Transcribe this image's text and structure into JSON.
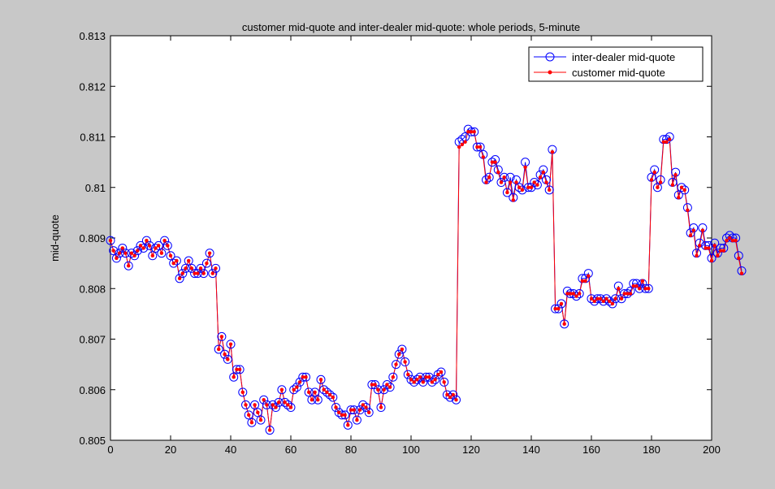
{
  "window": {
    "background": "#c8c8c8"
  },
  "chart_data": {
    "type": "line",
    "title": "customer mid-quote and inter-dealer mid-quote: whole periods, 5-minute",
    "xlabel": "",
    "ylabel": "mid-quote",
    "xlim": [
      0,
      200
    ],
    "ylim": [
      0.805,
      0.813
    ],
    "x_ticks": [
      0,
      20,
      40,
      60,
      80,
      100,
      120,
      140,
      160,
      180,
      200
    ],
    "y_ticks": [
      0.805,
      0.806,
      0.807,
      0.808,
      0.809,
      0.81,
      0.811,
      0.812,
      0.813
    ],
    "x_tick_labels": [
      "0",
      "20",
      "40",
      "60",
      "80",
      "100",
      "120",
      "140",
      "160",
      "180",
      "200"
    ],
    "y_tick_labels": [
      "0.805",
      "0.806",
      "0.807",
      "0.808",
      "0.809",
      "0.81",
      "0.811",
      "0.812",
      "0.813"
    ],
    "grid": false,
    "legend_position": "top-right",
    "series": [
      {
        "name": "inter-dealer mid-quote",
        "color": "#0000ff",
        "marker": "circle",
        "values": [
          0.80895,
          0.80875,
          0.8086,
          0.8087,
          0.8088,
          0.8087,
          0.80845,
          0.8087,
          0.80865,
          0.80875,
          0.80885,
          0.8088,
          0.80895,
          0.80885,
          0.80865,
          0.8088,
          0.80885,
          0.8087,
          0.80895,
          0.80885,
          0.80865,
          0.8085,
          0.80855,
          0.8082,
          0.8083,
          0.8084,
          0.80855,
          0.8084,
          0.8083,
          0.8083,
          0.8084,
          0.8083,
          0.8085,
          0.8087,
          0.8083,
          0.8084,
          0.8068,
          0.80705,
          0.8067,
          0.8066,
          0.8069,
          0.80625,
          0.8064,
          0.8064,
          0.80595,
          0.8057,
          0.8055,
          0.80535,
          0.8057,
          0.80555,
          0.8054,
          0.8058,
          0.8057,
          0.8052,
          0.8057,
          0.80565,
          0.80575,
          0.806,
          0.80575,
          0.8057,
          0.80565,
          0.806,
          0.80605,
          0.80615,
          0.80625,
          0.80625,
          0.80595,
          0.8058,
          0.80595,
          0.8058,
          0.8062,
          0.806,
          0.80595,
          0.8059,
          0.80585,
          0.80565,
          0.80555,
          0.8055,
          0.8055,
          0.8053,
          0.8056,
          0.8056,
          0.8054,
          0.8056,
          0.8057,
          0.80565,
          0.80555,
          0.8061,
          0.8061,
          0.806,
          0.80565,
          0.806,
          0.8061,
          0.80605,
          0.80625,
          0.8065,
          0.8067,
          0.8068,
          0.80655,
          0.8063,
          0.8062,
          0.80615,
          0.8062,
          0.80625,
          0.80615,
          0.80625,
          0.80625,
          0.80615,
          0.8062,
          0.8063,
          0.80635,
          0.80615,
          0.8059,
          0.80585,
          0.8059,
          0.8058,
          0.8109,
          0.81095,
          0.811,
          0.81115,
          0.8111,
          0.8111,
          0.8108,
          0.8108,
          0.81065,
          0.81015,
          0.8102,
          0.8105,
          0.81055,
          0.81035,
          0.8101,
          0.8102,
          0.8099,
          0.8102,
          0.8098,
          0.81015,
          0.81,
          0.80995,
          0.8105,
          0.81,
          0.81,
          0.8101,
          0.81005,
          0.81025,
          0.81035,
          0.81015,
          0.80995,
          0.81075,
          0.8076,
          0.8076,
          0.8077,
          0.8073,
          0.80795,
          0.8079,
          0.8079,
          0.80785,
          0.8079,
          0.8082,
          0.8082,
          0.8083,
          0.8078,
          0.80775,
          0.8078,
          0.8078,
          0.80775,
          0.8078,
          0.80775,
          0.8077,
          0.8078,
          0.80805,
          0.8078,
          0.8079,
          0.8079,
          0.80795,
          0.8081,
          0.8081,
          0.808,
          0.8081,
          0.808,
          0.808,
          0.8102,
          0.81035,
          0.81,
          0.81015,
          0.81095,
          0.81095,
          0.811,
          0.8101,
          0.8103,
          0.80985,
          0.81,
          0.80995,
          0.8096,
          0.8091,
          0.8092,
          0.8087,
          0.8089,
          0.8092,
          0.80885,
          0.80885,
          0.8086,
          0.8089,
          0.8087,
          0.8088,
          0.8088,
          0.809,
          0.80905,
          0.809,
          0.809,
          0.80865,
          0.80835
        ],
        "x_start": 0
      },
      {
        "name": "customer mid-quote",
        "color": "#ff0000",
        "marker": "dot",
        "values": [
          0.80895,
          0.80875,
          0.8086,
          0.8087,
          0.8088,
          0.8087,
          0.80845,
          0.8087,
          0.80865,
          0.80875,
          0.80885,
          0.8088,
          0.80895,
          0.80885,
          0.80865,
          0.8088,
          0.80885,
          0.8087,
          0.80895,
          0.80885,
          0.80865,
          0.8085,
          0.80855,
          0.8082,
          0.8083,
          0.8084,
          0.80855,
          0.8084,
          0.8083,
          0.8083,
          0.8084,
          0.8083,
          0.8085,
          0.8087,
          0.8083,
          0.8084,
          0.8068,
          0.80705,
          0.8067,
          0.8066,
          0.8069,
          0.80625,
          0.8064,
          0.8064,
          0.80595,
          0.8057,
          0.8055,
          0.80535,
          0.8057,
          0.80555,
          0.8054,
          0.8058,
          0.8057,
          0.8052,
          0.8057,
          0.80565,
          0.80575,
          0.806,
          0.80575,
          0.8057,
          0.80565,
          0.806,
          0.80605,
          0.80615,
          0.80625,
          0.80625,
          0.80595,
          0.8058,
          0.80595,
          0.8058,
          0.8062,
          0.806,
          0.80595,
          0.8059,
          0.80585,
          0.80565,
          0.80555,
          0.8055,
          0.8055,
          0.8053,
          0.8056,
          0.8056,
          0.8054,
          0.8056,
          0.8057,
          0.80565,
          0.80555,
          0.8061,
          0.8061,
          0.806,
          0.80565,
          0.806,
          0.8061,
          0.80605,
          0.80625,
          0.8065,
          0.8067,
          0.8068,
          0.80655,
          0.8063,
          0.8062,
          0.80615,
          0.8062,
          0.80625,
          0.80615,
          0.80625,
          0.80625,
          0.80615,
          0.8062,
          0.8063,
          0.80635,
          0.80615,
          0.8059,
          0.80585,
          0.8059,
          0.8058,
          0.8108,
          0.81085,
          0.8109,
          0.8111,
          0.8111,
          0.8111,
          0.8108,
          0.8108,
          0.8106,
          0.8101,
          0.8102,
          0.8105,
          0.8105,
          0.8103,
          0.8101,
          0.8102,
          0.8099,
          0.8101,
          0.80975,
          0.8101,
          0.81,
          0.80995,
          0.8104,
          0.81,
          0.81,
          0.8101,
          0.81005,
          0.8102,
          0.8103,
          0.8101,
          0.80995,
          0.8107,
          0.8076,
          0.8076,
          0.8077,
          0.8073,
          0.8079,
          0.8079,
          0.8079,
          0.80785,
          0.8079,
          0.80815,
          0.80815,
          0.80825,
          0.8078,
          0.80775,
          0.8078,
          0.8078,
          0.80775,
          0.8078,
          0.80775,
          0.8077,
          0.8078,
          0.808,
          0.8078,
          0.8079,
          0.8079,
          0.8079,
          0.80805,
          0.80805,
          0.808,
          0.80815,
          0.808,
          0.808,
          0.81015,
          0.8103,
          0.81,
          0.8101,
          0.8109,
          0.8109,
          0.81095,
          0.81005,
          0.81025,
          0.8098,
          0.81,
          0.80995,
          0.80955,
          0.80905,
          0.80915,
          0.80865,
          0.80885,
          0.80915,
          0.8088,
          0.8088,
          0.80855,
          0.80885,
          0.80865,
          0.80875,
          0.80875,
          0.80895,
          0.809,
          0.80895,
          0.80895,
          0.8086,
          0.8083
        ],
        "x_start": 0
      }
    ]
  }
}
